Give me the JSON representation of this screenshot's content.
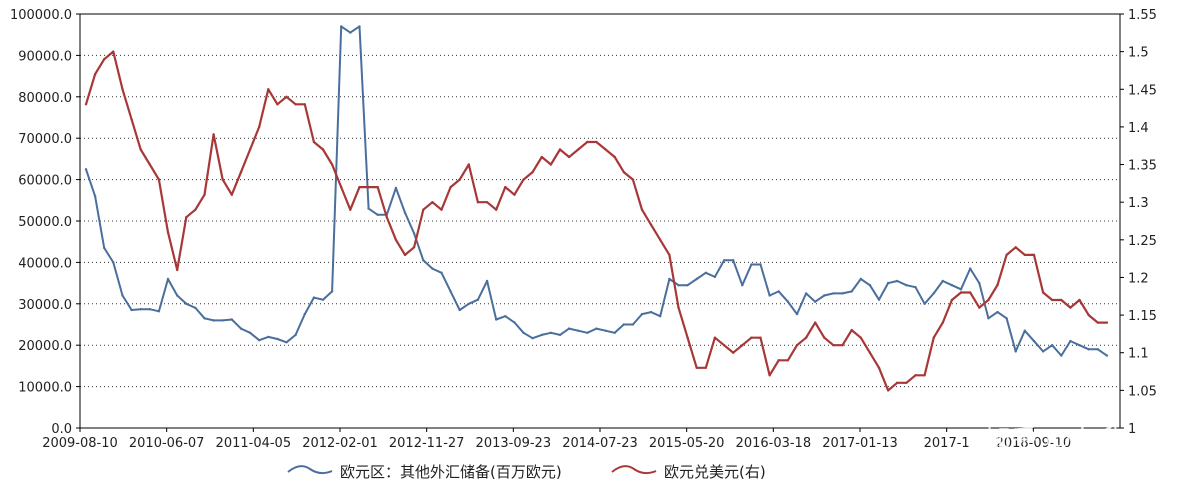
{
  "chart_data": {
    "type": "line",
    "title": "",
    "x_tick_labels": [
      "2009-08-10",
      "2010-06-07",
      "2011-04-05",
      "2012-02-01",
      "2012-11-27",
      "2013-09-23",
      "2014-07-23",
      "2015-05-20",
      "2016-03-18",
      "2017-01-13",
      "2017-1",
      "2018-09-10"
    ],
    "left_axis": {
      "ylim": [
        0,
        100000
      ],
      "ticks": [
        "0.0",
        "10000.0",
        "20000.0",
        "30000.0",
        "40000.0",
        "50000.0",
        "60000.0",
        "70000.0",
        "80000.0",
        "90000.0",
        "100000.0"
      ]
    },
    "right_axis": {
      "ylim": [
        1,
        1.55
      ],
      "ticks": [
        "1",
        "1.05",
        "1.1",
        "1.15",
        "1.2",
        "1.25",
        "1.3",
        "1.35",
        "1.4",
        "1.45",
        "1.5",
        "1.55"
      ]
    },
    "grid": "horizontal-dotted",
    "legend_position": "bottom-center",
    "series": [
      {
        "name": "欧元区：其他外汇储备(百万欧元)",
        "axis": "left",
        "color": "#4a6f9c",
        "x": [
          "2009-08",
          "2009-09",
          "2009-10",
          "2009-11",
          "2009-12",
          "2010-01",
          "2010-02",
          "2010-03",
          "2010-04",
          "2010-05",
          "2010-06",
          "2010-07",
          "2010-08",
          "2010-09",
          "2010-10",
          "2010-11",
          "2010-12",
          "2011-01",
          "2011-02",
          "2011-03",
          "2011-04",
          "2011-05",
          "2011-06",
          "2011-07",
          "2011-08",
          "2011-09",
          "2011-10",
          "2011-11",
          "2011-12",
          "2012-01",
          "2012-02",
          "2012-03",
          "2012-04",
          "2012-05",
          "2012-06",
          "2012-07",
          "2012-08",
          "2012-09",
          "2012-10",
          "2012-11",
          "2012-12",
          "2013-01",
          "2013-02",
          "2013-03",
          "2013-04",
          "2013-05",
          "2013-06",
          "2013-07",
          "2013-08",
          "2013-09",
          "2013-10",
          "2013-11",
          "2013-12",
          "2014-01",
          "2014-02",
          "2014-03",
          "2014-04",
          "2014-05",
          "2014-06",
          "2014-07",
          "2014-08",
          "2014-09",
          "2014-10",
          "2014-11",
          "2014-12",
          "2015-01",
          "2015-02",
          "2015-03",
          "2015-04",
          "2015-05",
          "2015-06",
          "2015-07",
          "2015-08",
          "2015-09",
          "2015-10",
          "2015-11",
          "2015-12",
          "2016-01",
          "2016-02",
          "2016-03",
          "2016-04",
          "2016-05",
          "2016-06",
          "2016-07",
          "2016-08",
          "2016-09",
          "2016-10",
          "2016-11",
          "2016-12",
          "2017-01",
          "2017-02",
          "2017-03",
          "2017-04",
          "2017-05",
          "2017-06",
          "2017-07",
          "2017-08",
          "2017-09",
          "2017-10",
          "2017-11",
          "2017-12",
          "2018-01",
          "2018-02",
          "2018-03",
          "2018-04",
          "2018-05",
          "2018-06",
          "2018-07",
          "2018-08",
          "2018-09",
          "2018-10",
          "2018-11",
          "2018-12"
        ],
        "values": [
          62500,
          56000,
          43500,
          40000,
          32000,
          28500,
          28700,
          28700,
          28200,
          36000,
          32000,
          30000,
          29000,
          26500,
          26000,
          26000,
          26200,
          24000,
          23000,
          21200,
          22000,
          21500,
          20700,
          22500,
          27500,
          31500,
          31000,
          33000,
          97000,
          95500,
          97000,
          53000,
          51500,
          51500,
          58000,
          52000,
          47000,
          40500,
          38500,
          37500,
          33000,
          28500,
          30000,
          31000,
          35500,
          26200,
          27000,
          25500,
          23000,
          21700,
          22500,
          23000,
          22500,
          24000,
          23500,
          23000,
          24000,
          23500,
          23000,
          25000,
          25000,
          27500,
          28000,
          27000,
          36000,
          34500,
          34500,
          36000,
          37500,
          36500,
          40500,
          40500,
          34500,
          39500,
          39500,
          32000,
          33000,
          30500,
          27500,
          32500,
          30500,
          32000,
          32500,
          32500,
          33000,
          36000,
          34500,
          31000,
          35000,
          35500,
          34500,
          34000,
          30000,
          32500,
          35500,
          34500,
          33500,
          38500,
          35000,
          26500,
          28000,
          26500,
          18500,
          23500,
          21000,
          18500,
          20000,
          17500,
          21000,
          20000,
          19000,
          19000,
          17500
        ]
      },
      {
        "name": "欧元兑美元(右)",
        "axis": "right",
        "color": "#a83838",
        "x": [
          "2009-08",
          "2009-09",
          "2009-10",
          "2009-11",
          "2009-12",
          "2010-01",
          "2010-02",
          "2010-03",
          "2010-04",
          "2010-05",
          "2010-06",
          "2010-07",
          "2010-08",
          "2010-09",
          "2010-10",
          "2010-11",
          "2010-12",
          "2011-01",
          "2011-02",
          "2011-03",
          "2011-04",
          "2011-05",
          "2011-06",
          "2011-07",
          "2011-08",
          "2011-09",
          "2011-10",
          "2011-11",
          "2011-12",
          "2012-01",
          "2012-02",
          "2012-03",
          "2012-04",
          "2012-05",
          "2012-06",
          "2012-07",
          "2012-08",
          "2012-09",
          "2012-10",
          "2012-11",
          "2012-12",
          "2013-01",
          "2013-02",
          "2013-03",
          "2013-04",
          "2013-05",
          "2013-06",
          "2013-07",
          "2013-08",
          "2013-09",
          "2013-10",
          "2013-11",
          "2013-12",
          "2014-01",
          "2014-02",
          "2014-03",
          "2014-04",
          "2014-05",
          "2014-06",
          "2014-07",
          "2014-08",
          "2014-09",
          "2014-10",
          "2014-11",
          "2014-12",
          "2015-01",
          "2015-02",
          "2015-03",
          "2015-04",
          "2015-05",
          "2015-06",
          "2015-07",
          "2015-08",
          "2015-09",
          "2015-10",
          "2015-11",
          "2015-12",
          "2016-01",
          "2016-02",
          "2016-03",
          "2016-04",
          "2016-05",
          "2016-06",
          "2016-07",
          "2016-08",
          "2016-09",
          "2016-10",
          "2016-11",
          "2016-12",
          "2017-01",
          "2017-02",
          "2017-03",
          "2017-04",
          "2017-05",
          "2017-06",
          "2017-07",
          "2017-08",
          "2017-09",
          "2017-10",
          "2017-11",
          "2017-12",
          "2018-01",
          "2018-02",
          "2018-03",
          "2018-04",
          "2018-05",
          "2018-06",
          "2018-07",
          "2018-08",
          "2018-09",
          "2018-10",
          "2018-11",
          "2018-12"
        ],
        "values": [
          1.43,
          1.47,
          1.49,
          1.5,
          1.45,
          1.41,
          1.37,
          1.35,
          1.33,
          1.26,
          1.21,
          1.28,
          1.29,
          1.31,
          1.39,
          1.33,
          1.31,
          1.34,
          1.37,
          1.4,
          1.45,
          1.43,
          1.44,
          1.43,
          1.43,
          1.38,
          1.37,
          1.35,
          1.32,
          1.29,
          1.32,
          1.32,
          1.32,
          1.28,
          1.25,
          1.23,
          1.24,
          1.29,
          1.3,
          1.29,
          1.32,
          1.33,
          1.35,
          1.3,
          1.3,
          1.29,
          1.32,
          1.31,
          1.33,
          1.34,
          1.36,
          1.35,
          1.37,
          1.36,
          1.37,
          1.38,
          1.38,
          1.37,
          1.36,
          1.34,
          1.33,
          1.29,
          1.27,
          1.25,
          1.23,
          1.16,
          1.12,
          1.08,
          1.08,
          1.12,
          1.11,
          1.1,
          1.11,
          1.12,
          1.12,
          1.07,
          1.09,
          1.09,
          1.11,
          1.12,
          1.14,
          1.12,
          1.11,
          1.11,
          1.13,
          1.12,
          1.1,
          1.08,
          1.05,
          1.06,
          1.06,
          1.07,
          1.07,
          1.12,
          1.14,
          1.17,
          1.18,
          1.18,
          1.16,
          1.17,
          1.19,
          1.23,
          1.24,
          1.23,
          1.23,
          1.18,
          1.17,
          1.17,
          1.16,
          1.17,
          1.15,
          1.14,
          1.14
        ]
      }
    ]
  },
  "legend": [
    {
      "label": "欧元区：其他外汇储备(百万欧元)",
      "color": "#4a6f9c"
    },
    {
      "label": "欧元兑美元(右)",
      "color": "#a83838"
    }
  ],
  "watermark": "知乎 @东升"
}
